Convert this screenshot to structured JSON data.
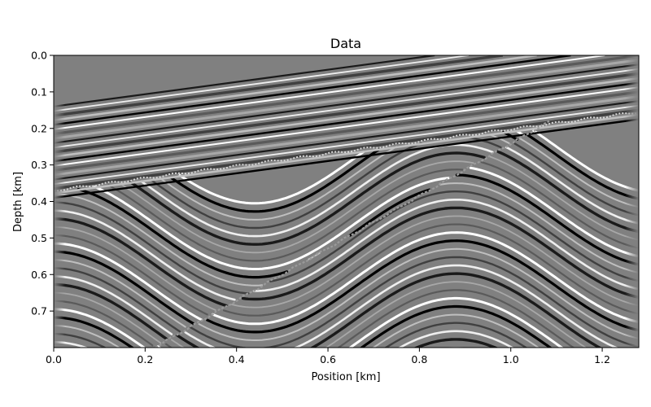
{
  "chart_data": {
    "type": "heatmap",
    "title": "Data",
    "xlabel": "Position [km]",
    "ylabel": "Depth [km]",
    "xlim": [
      0.0,
      1.28
    ],
    "ylim": [
      0.8,
      0.0
    ],
    "y_inverted": true,
    "colormap": "grayscale",
    "grid": false,
    "legend": "none",
    "x_ticks": [
      {
        "value": 0.0,
        "label": "0.0"
      },
      {
        "value": 0.2,
        "label": "0.2"
      },
      {
        "value": 0.4,
        "label": "0.4"
      },
      {
        "value": 0.6,
        "label": "0.6"
      },
      {
        "value": 0.8,
        "label": "0.8"
      },
      {
        "value": 1.0,
        "label": "1.0"
      },
      {
        "value": 1.2,
        "label": "1.2"
      }
    ],
    "y_ticks": [
      {
        "value": 0.0,
        "label": "0.0"
      },
      {
        "value": 0.1,
        "label": "0.1"
      },
      {
        "value": 0.2,
        "label": "0.2"
      },
      {
        "value": 0.3,
        "label": "0.3"
      },
      {
        "value": 0.4,
        "label": "0.4"
      },
      {
        "value": 0.5,
        "label": "0.5"
      },
      {
        "value": 0.6,
        "label": "0.6"
      },
      {
        "value": 0.7,
        "label": "0.7"
      }
    ],
    "unconformity_depth": {
      "x": [
        0.0,
        1.28
      ],
      "y": [
        0.37,
        0.155
      ]
    },
    "fault": {
      "x": [
        0.22,
        1.1
      ],
      "y": [
        0.8,
        0.17
      ]
    }
  }
}
